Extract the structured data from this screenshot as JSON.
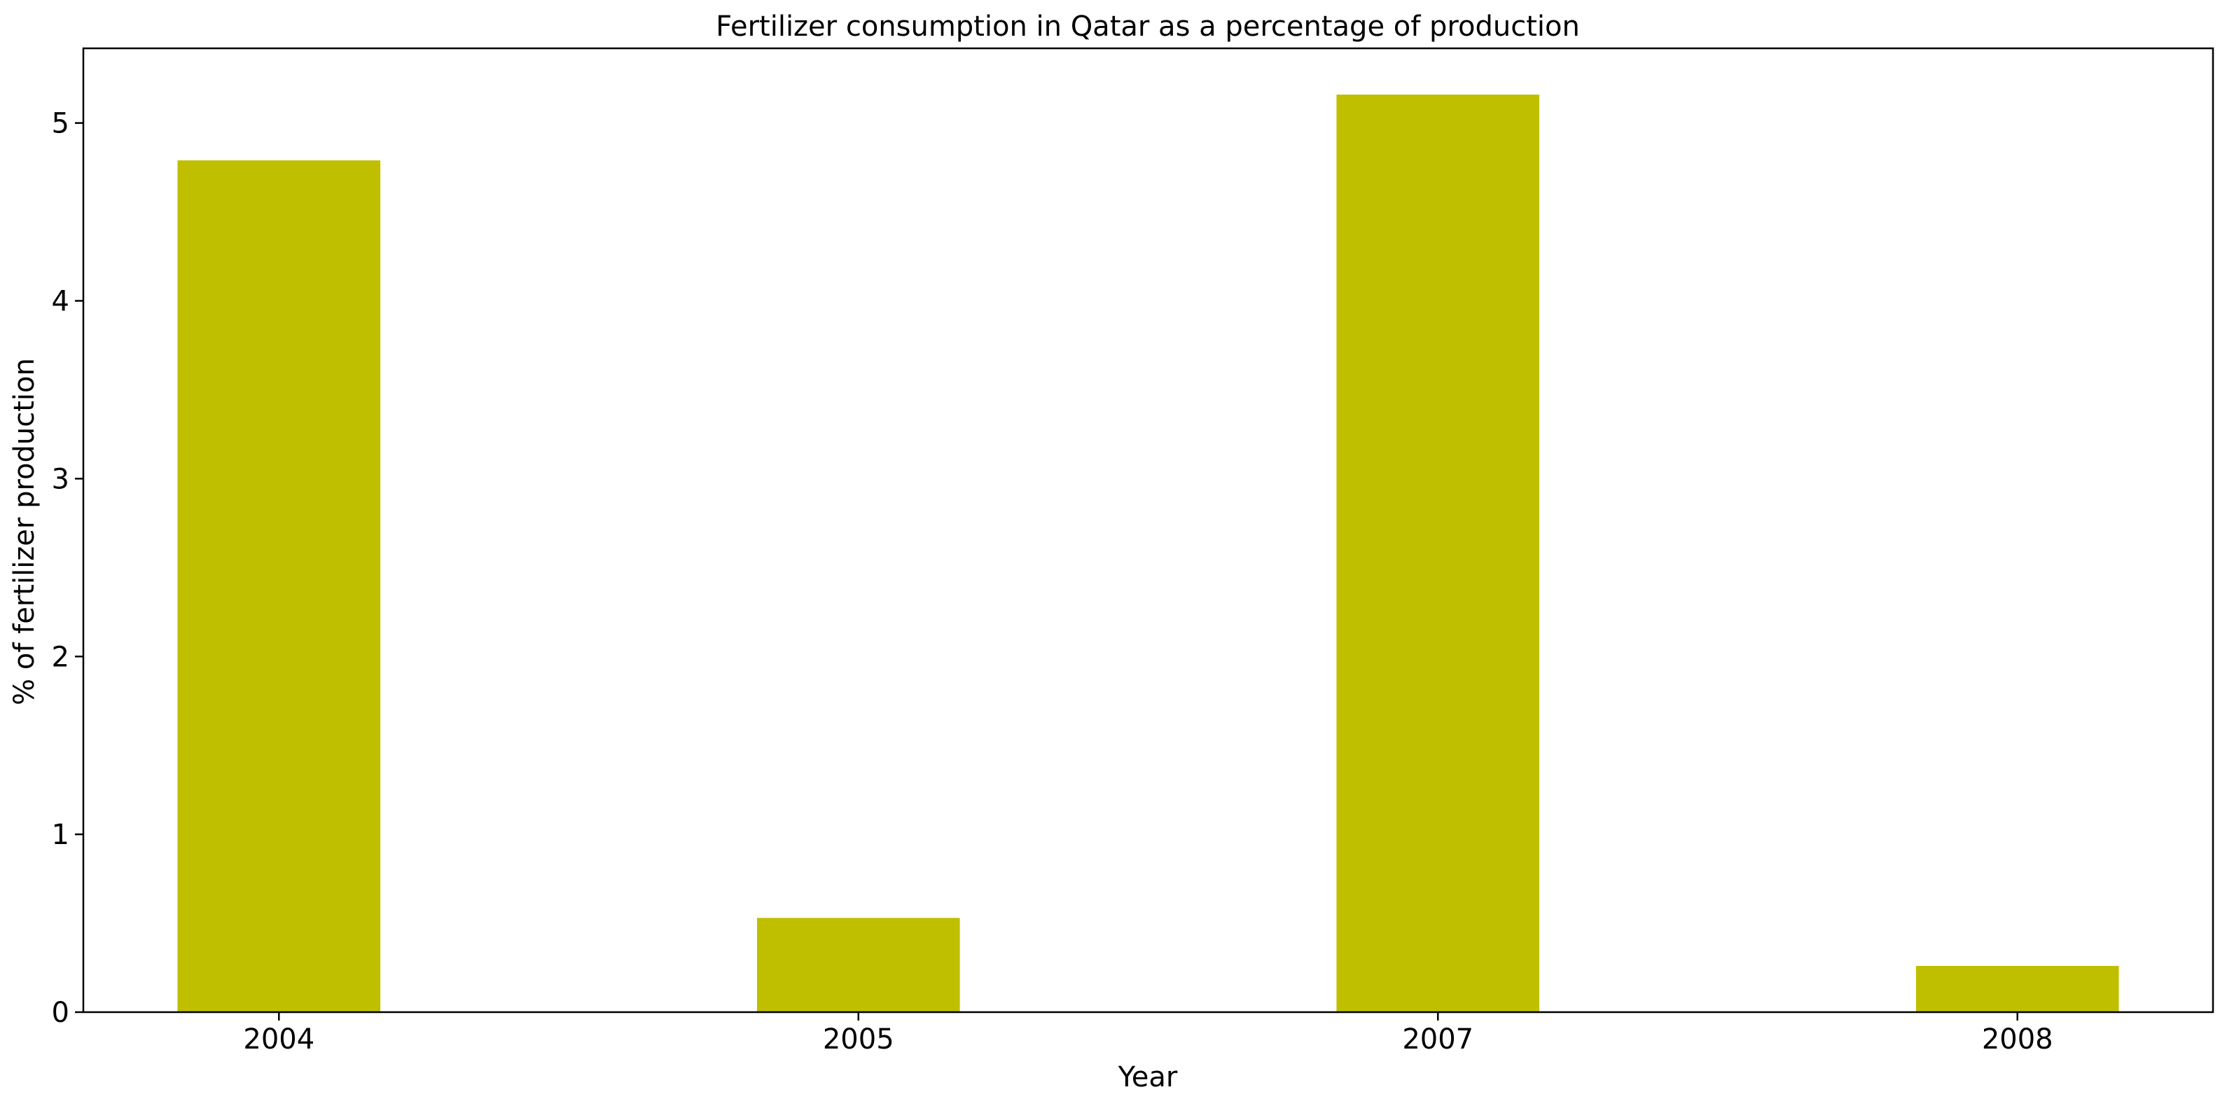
{
  "chart_data": {
    "type": "bar",
    "title": "Fertilizer consumption in Qatar as a percentage of production",
    "xlabel": "Year",
    "ylabel": "% of fertilizer production",
    "categories": [
      "2004",
      "2005",
      "2007",
      "2008"
    ],
    "values": [
      4.79,
      0.53,
      5.16,
      0.26
    ],
    "ylim": [
      0,
      5.42
    ],
    "yticks": [
      0,
      1,
      2,
      3,
      4,
      5
    ],
    "grid": false,
    "legend": "none",
    "bar_color": "#bfbf00"
  }
}
